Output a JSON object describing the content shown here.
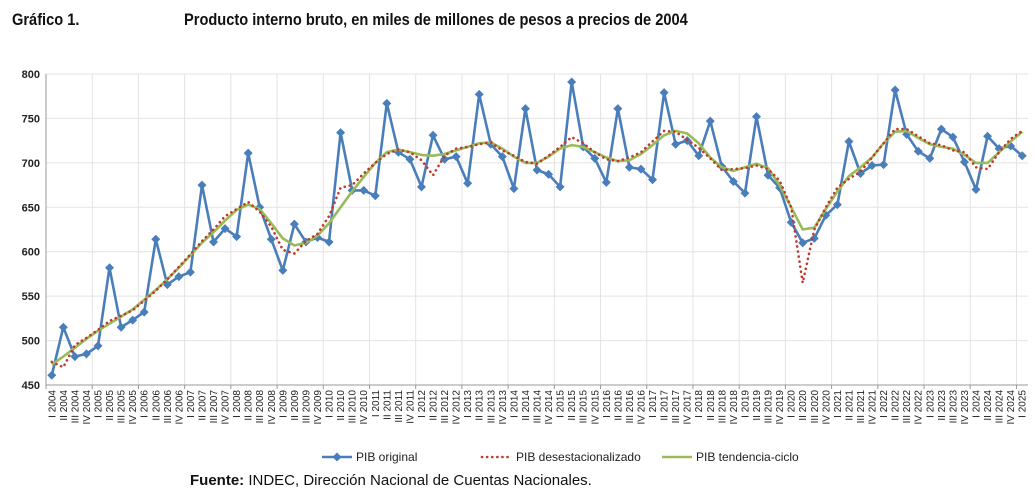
{
  "header": {
    "figure_label": "Gráfico 1.",
    "title": "Producto interno bruto, en miles de millones de pesos a precios de 2004"
  },
  "source": {
    "label": "Fuente:",
    "text": " INDEC, Dirección Nacional de Cuentas Nacionales."
  },
  "chart_data": {
    "type": "line",
    "title": "Producto interno bruto, en miles de millones de pesos a precios de 2004",
    "ylim": [
      450,
      800
    ],
    "yticks": [
      450,
      500,
      550,
      600,
      650,
      700,
      750,
      800
    ],
    "grid": true,
    "legend_position": "bottom",
    "x": [
      "I 2004",
      "II 2004",
      "III 2004",
      "IV 2004",
      "I 2005",
      "II 2005",
      "III 2005",
      "IV 2005",
      "I 2006",
      "II 2006",
      "III 2006",
      "IV 2006",
      "I 2007",
      "II 2007",
      "III 2007",
      "IV 2007",
      "I 2008",
      "II 2008",
      "III 2008",
      "IV 2008",
      "I 2009",
      "II 2009",
      "III 2009",
      "IV 2009",
      "I 2010",
      "II 2010",
      "III 2010",
      "IV 2010",
      "I 2011",
      "II 2011",
      "III 2011",
      "IV 2011",
      "I 2012",
      "II 2012",
      "III 2012",
      "IV 2012",
      "I 2013",
      "II 2013",
      "III 2013",
      "IV 2013",
      "I 2014",
      "II 2014",
      "III 2014",
      "IV 2014",
      "I 2015",
      "II 2015",
      "III 2015",
      "IV 2015",
      "I 2016",
      "II 2016",
      "III 2016",
      "IV 2016",
      "I 2017",
      "II 2017",
      "III 2017",
      "IV 2017",
      "I 2018",
      "II 2018",
      "III 2018",
      "IV 2018",
      "I 2019",
      "II 2019",
      "III 2019",
      "IV 2019",
      "I 2020",
      "II 2020",
      "III 2020",
      "IV 2020",
      "I 2021",
      "II 2021",
      "III 2021",
      "IV 2021",
      "I 2022",
      "II 2022",
      "III 2022",
      "IV 2022",
      "I 2023",
      "II 2023",
      "III 2023",
      "IV 2023",
      "I 2024",
      "II 2024",
      "III 2024",
      "IV 2024",
      "I 2025"
    ],
    "series": [
      {
        "name": "PIB original",
        "color": "#4a7ebb",
        "style": "line-diamond",
        "values": [
          461,
          515,
          482,
          485,
          494,
          582,
          515,
          523,
          532,
          614,
          563,
          572,
          577,
          675,
          611,
          626,
          617,
          711,
          650,
          614,
          579,
          631,
          611,
          616,
          611,
          734,
          669,
          669,
          663,
          767,
          712,
          704,
          673,
          731,
          704,
          707,
          677,
          777,
          721,
          707,
          671,
          761,
          692,
          687,
          673,
          791,
          718,
          705,
          678,
          761,
          695,
          693,
          681,
          779,
          721,
          725,
          708,
          747,
          696,
          679,
          666,
          752,
          686,
          672,
          633,
          610,
          615,
          641,
          653,
          724,
          688,
          697,
          698,
          782,
          732,
          713,
          705,
          738,
          729,
          701,
          670,
          730,
          716,
          719,
          708
        ]
      },
      {
        "name": "PIB desestacionalizado",
        "color": "#c0392b",
        "style": "dotted",
        "values": [
          476,
          470,
          495,
          503,
          512,
          522,
          528,
          534,
          545,
          556,
          569,
          583,
          597,
          612,
          625,
          640,
          648,
          656,
          645,
          628,
          602,
          598,
          612,
          620,
          640,
          672,
          675,
          688,
          700,
          710,
          715,
          712,
          703,
          686,
          708,
          716,
          718,
          721,
          723,
          714,
          708,
          701,
          699,
          708,
          718,
          729,
          722,
          712,
          704,
          702,
          706,
          712,
          724,
          736,
          735,
          726,
          717,
          705,
          692,
          693,
          694,
          697,
          693,
          680,
          650,
          565,
          625,
          650,
          672,
          682,
          690,
          706,
          722,
          738,
          738,
          730,
          722,
          720,
          714,
          712,
          695,
          693,
          712,
          727,
          736
        ]
      },
      {
        "name": "PIB tendencia-ciclo",
        "color": "#9bbb59",
        "style": "line",
        "values": [
          473,
          482,
          492,
          502,
          511,
          519,
          527,
          535,
          546,
          557,
          569,
          582,
          596,
          610,
          622,
          635,
          647,
          653,
          648,
          632,
          615,
          607,
          610,
          618,
          632,
          650,
          668,
          684,
          700,
          712,
          715,
          712,
          709,
          708,
          710,
          714,
          718,
          722,
          723,
          716,
          707,
          700,
          700,
          707,
          716,
          720,
          718,
          712,
          706,
          702,
          703,
          710,
          720,
          731,
          736,
          733,
          722,
          706,
          695,
          691,
          695,
          699,
          694,
          675,
          650,
          625,
          627,
          648,
          668,
          685,
          695,
          706,
          722,
          735,
          736,
          728,
          721,
          718,
          716,
          709,
          700,
          700,
          712,
          724,
          735
        ]
      }
    ]
  }
}
